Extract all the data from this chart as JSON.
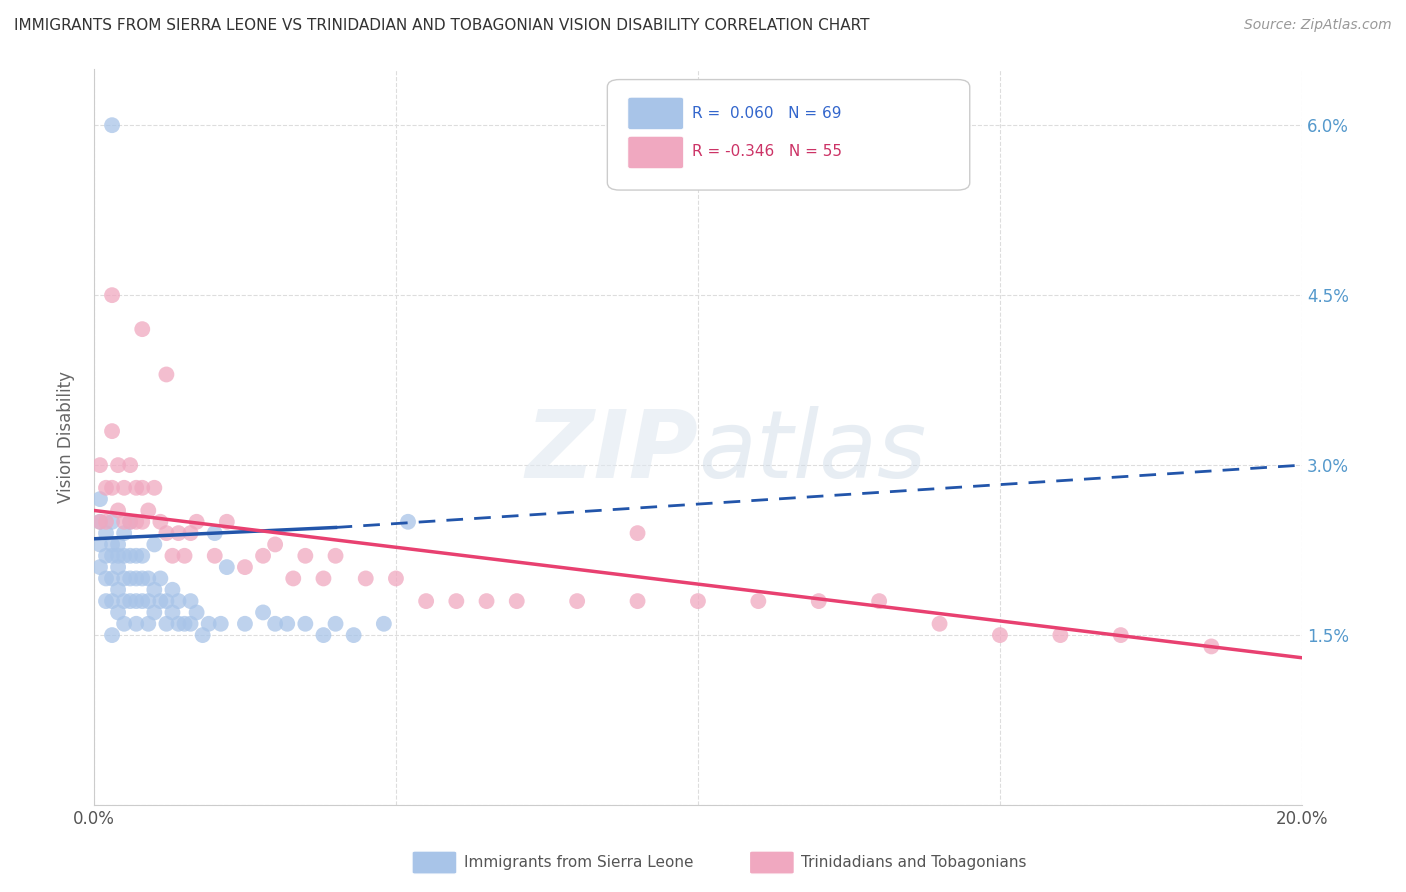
{
  "title": "IMMIGRANTS FROM SIERRA LEONE VS TRINIDADIAN AND TOBAGONIAN VISION DISABILITY CORRELATION CHART",
  "source": "Source: ZipAtlas.com",
  "ylabel": "Vision Disability",
  "xlim": [
    0.0,
    0.2
  ],
  "ylim": [
    0.0,
    0.065
  ],
  "xticks": [
    0.0,
    0.05,
    0.1,
    0.15,
    0.2
  ],
  "xtick_labels": [
    "0.0%",
    "",
    "",
    "",
    "20.0%"
  ],
  "yticks": [
    0.0,
    0.015,
    0.03,
    0.045,
    0.06
  ],
  "ytick_labels": [
    "",
    "1.5%",
    "3.0%",
    "4.5%",
    "6.0%"
  ],
  "blue_R": 0.06,
  "blue_N": 69,
  "pink_R": -0.346,
  "pink_N": 55,
  "blue_color": "#a8c4e8",
  "pink_color": "#f0a8c0",
  "blue_line_color": "#2255aa",
  "pink_line_color": "#e84070",
  "legend_blue_label": "Immigrants from Sierra Leone",
  "legend_pink_label": "Trinidadians and Tobagonians",
  "blue_line_start_x": 0.0,
  "blue_line_start_y": 0.0235,
  "blue_line_solid_end_x": 0.04,
  "blue_line_solid_end_y": 0.0245,
  "blue_line_end_x": 0.2,
  "blue_line_end_y": 0.03,
  "pink_line_start_x": 0.0,
  "pink_line_start_y": 0.026,
  "pink_line_end_x": 0.2,
  "pink_line_end_y": 0.013,
  "blue_scatter_x": [
    0.001,
    0.001,
    0.001,
    0.001,
    0.002,
    0.002,
    0.002,
    0.002,
    0.003,
    0.003,
    0.003,
    0.003,
    0.003,
    0.003,
    0.004,
    0.004,
    0.004,
    0.004,
    0.004,
    0.005,
    0.005,
    0.005,
    0.005,
    0.005,
    0.006,
    0.006,
    0.006,
    0.006,
    0.007,
    0.007,
    0.007,
    0.007,
    0.008,
    0.008,
    0.008,
    0.009,
    0.009,
    0.009,
    0.01,
    0.01,
    0.01,
    0.011,
    0.011,
    0.012,
    0.012,
    0.013,
    0.013,
    0.014,
    0.014,
    0.015,
    0.016,
    0.016,
    0.017,
    0.018,
    0.019,
    0.02,
    0.021,
    0.022,
    0.025,
    0.028,
    0.03,
    0.032,
    0.035,
    0.038,
    0.04,
    0.043,
    0.048,
    0.052,
    0.003
  ],
  "blue_scatter_y": [
    0.023,
    0.021,
    0.025,
    0.027,
    0.022,
    0.024,
    0.018,
    0.02,
    0.022,
    0.02,
    0.018,
    0.023,
    0.025,
    0.015,
    0.021,
    0.019,
    0.017,
    0.023,
    0.022,
    0.02,
    0.018,
    0.022,
    0.024,
    0.016,
    0.022,
    0.02,
    0.018,
    0.025,
    0.02,
    0.018,
    0.022,
    0.016,
    0.02,
    0.018,
    0.022,
    0.02,
    0.018,
    0.016,
    0.019,
    0.023,
    0.017,
    0.02,
    0.018,
    0.018,
    0.016,
    0.019,
    0.017,
    0.016,
    0.018,
    0.016,
    0.018,
    0.016,
    0.017,
    0.015,
    0.016,
    0.024,
    0.016,
    0.021,
    0.016,
    0.017,
    0.016,
    0.016,
    0.016,
    0.015,
    0.016,
    0.015,
    0.016,
    0.025,
    0.06
  ],
  "pink_scatter_x": [
    0.001,
    0.001,
    0.002,
    0.002,
    0.003,
    0.003,
    0.004,
    0.004,
    0.005,
    0.005,
    0.006,
    0.006,
    0.007,
    0.007,
    0.008,
    0.008,
    0.009,
    0.01,
    0.011,
    0.012,
    0.013,
    0.014,
    0.015,
    0.016,
    0.017,
    0.02,
    0.022,
    0.025,
    0.028,
    0.03,
    0.033,
    0.035,
    0.038,
    0.04,
    0.045,
    0.05,
    0.055,
    0.06,
    0.065,
    0.07,
    0.08,
    0.09,
    0.1,
    0.11,
    0.12,
    0.13,
    0.14,
    0.15,
    0.16,
    0.17,
    0.185,
    0.09,
    0.003,
    0.008,
    0.012
  ],
  "pink_scatter_y": [
    0.03,
    0.025,
    0.028,
    0.025,
    0.033,
    0.028,
    0.03,
    0.026,
    0.028,
    0.025,
    0.025,
    0.03,
    0.025,
    0.028,
    0.025,
    0.028,
    0.026,
    0.028,
    0.025,
    0.024,
    0.022,
    0.024,
    0.022,
    0.024,
    0.025,
    0.022,
    0.025,
    0.021,
    0.022,
    0.023,
    0.02,
    0.022,
    0.02,
    0.022,
    0.02,
    0.02,
    0.018,
    0.018,
    0.018,
    0.018,
    0.018,
    0.018,
    0.018,
    0.018,
    0.018,
    0.018,
    0.016,
    0.015,
    0.015,
    0.015,
    0.014,
    0.024,
    0.045,
    0.042,
    0.038
  ],
  "watermark_zip": "ZIP",
  "watermark_atlas": "atlas",
  "background_color": "#ffffff",
  "grid_color": "#dddddd"
}
